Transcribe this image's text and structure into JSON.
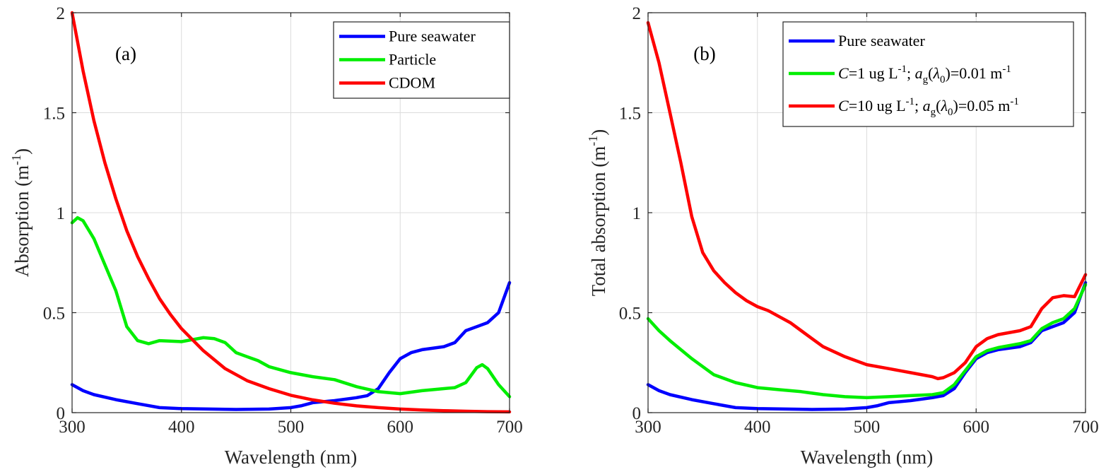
{
  "chart_data": [
    {
      "type": "line",
      "panel_label": "(a)",
      "xlabel": "Wavelength (nm)",
      "ylabel": "Absorption (m",
      "ylabel_sup": "-1",
      "ylabel_end": ")",
      "xlim": [
        300,
        700
      ],
      "ylim": [
        0,
        2
      ],
      "grid": true,
      "legend_position": "top-right",
      "xticks": [
        300,
        400,
        500,
        600,
        700
      ],
      "yticks": [
        0,
        0.5,
        1,
        1.5,
        2
      ],
      "ytick_labels": [
        "0",
        "0.5",
        "1",
        "1.5",
        "2"
      ],
      "series": [
        {
          "name": "Pure seawater",
          "legend": [
            {
              "t": "Pure seawater"
            }
          ],
          "color": "#0000ff",
          "x": [
            300,
            310,
            320,
            340,
            360,
            380,
            400,
            450,
            480,
            500,
            510,
            520,
            540,
            560,
            570,
            580,
            590,
            600,
            610,
            620,
            640,
            650,
            660,
            670,
            680,
            690,
            700
          ],
          "y": [
            0.14,
            0.11,
            0.09,
            0.065,
            0.045,
            0.025,
            0.02,
            0.016,
            0.018,
            0.025,
            0.035,
            0.05,
            0.06,
            0.075,
            0.085,
            0.12,
            0.2,
            0.27,
            0.3,
            0.315,
            0.33,
            0.35,
            0.41,
            0.43,
            0.45,
            0.5,
            0.65
          ]
        },
        {
          "name": "Particle",
          "legend": [
            {
              "t": "Particle"
            }
          ],
          "color": "#00ee00",
          "x": [
            300,
            305,
            310,
            320,
            330,
            340,
            350,
            360,
            370,
            380,
            400,
            410,
            420,
            430,
            440,
            450,
            460,
            470,
            480,
            500,
            520,
            540,
            560,
            580,
            600,
            620,
            640,
            650,
            660,
            670,
            675,
            680,
            690,
            700
          ],
          "y": [
            0.95,
            0.975,
            0.96,
            0.87,
            0.74,
            0.61,
            0.43,
            0.36,
            0.345,
            0.36,
            0.355,
            0.365,
            0.375,
            0.37,
            0.35,
            0.3,
            0.28,
            0.26,
            0.23,
            0.2,
            0.18,
            0.165,
            0.13,
            0.105,
            0.095,
            0.11,
            0.12,
            0.125,
            0.15,
            0.225,
            0.24,
            0.22,
            0.14,
            0.08
          ]
        },
        {
          "name": "CDOM",
          "legend": [
            {
              "t": "CDOM"
            }
          ],
          "color": "#ff0000",
          "x": [
            300,
            310,
            320,
            330,
            340,
            350,
            360,
            370,
            380,
            390,
            400,
            420,
            440,
            460,
            480,
            500,
            520,
            540,
            560,
            580,
            600,
            620,
            640,
            660,
            680,
            700
          ],
          "y": [
            2.0,
            1.71,
            1.46,
            1.25,
            1.07,
            0.91,
            0.78,
            0.67,
            0.57,
            0.49,
            0.42,
            0.31,
            0.22,
            0.16,
            0.12,
            0.087,
            0.064,
            0.047,
            0.034,
            0.025,
            0.018,
            0.013,
            0.01,
            0.007,
            0.005,
            0.004
          ]
        }
      ]
    },
    {
      "type": "line",
      "panel_label": "(b)",
      "xlabel": "Wavelength (nm)",
      "ylabel": "Total absorption (m",
      "ylabel_sup": "-1",
      "ylabel_end": ")",
      "xlim": [
        300,
        700
      ],
      "ylim": [
        0,
        2
      ],
      "grid": true,
      "legend_position": "top-right",
      "xticks": [
        300,
        400,
        500,
        600,
        700
      ],
      "yticks": [
        0,
        0.5,
        1,
        1.5,
        2
      ],
      "ytick_labels": [
        "0",
        "0.5",
        "1",
        "1.5",
        "2"
      ],
      "series": [
        {
          "name": "Pure seawater",
          "legend": [
            {
              "t": "Pure seawater"
            }
          ],
          "color": "#0000ff",
          "x": [
            300,
            310,
            320,
            340,
            360,
            380,
            400,
            450,
            480,
            500,
            510,
            520,
            540,
            560,
            570,
            580,
            590,
            600,
            610,
            620,
            640,
            650,
            660,
            670,
            680,
            690,
            700
          ],
          "y": [
            0.14,
            0.11,
            0.09,
            0.065,
            0.045,
            0.025,
            0.02,
            0.016,
            0.018,
            0.025,
            0.035,
            0.05,
            0.06,
            0.075,
            0.085,
            0.12,
            0.2,
            0.27,
            0.3,
            0.315,
            0.33,
            0.35,
            0.41,
            0.43,
            0.45,
            0.5,
            0.65
          ]
        },
        {
          "name": "C=1 ug L-1; ag(λ0)=0.01 m-1",
          "legend": [
            {
              "t": "C",
              "i": true
            },
            {
              "t": "=1 ug L"
            },
            {
              "t": "-1",
              "s": "sup"
            },
            {
              "t": "; "
            },
            {
              "t": "a",
              "i": true
            },
            {
              "t": "g",
              "s": "sub"
            },
            {
              "t": "("
            },
            {
              "t": "λ",
              "i": true
            },
            {
              "t": "0",
              "s": "sub"
            },
            {
              "t": ")=0.01 m"
            },
            {
              "t": "-1",
              "s": "sup"
            }
          ],
          "color": "#00ee00",
          "x": [
            300,
            310,
            320,
            340,
            360,
            380,
            400,
            420,
            440,
            460,
            480,
            500,
            520,
            540,
            560,
            570,
            580,
            590,
            600,
            610,
            620,
            640,
            650,
            660,
            670,
            680,
            690,
            700
          ],
          "y": [
            0.47,
            0.41,
            0.36,
            0.27,
            0.19,
            0.15,
            0.125,
            0.115,
            0.105,
            0.09,
            0.08,
            0.075,
            0.08,
            0.085,
            0.09,
            0.1,
            0.14,
            0.21,
            0.28,
            0.31,
            0.325,
            0.345,
            0.36,
            0.42,
            0.45,
            0.47,
            0.52,
            0.64
          ]
        },
        {
          "name": "C=10 ug L-1; ag(λ0)=0.05 m-1",
          "legend": [
            {
              "t": "C",
              "i": true
            },
            {
              "t": "=10 ug L"
            },
            {
              "t": "-1",
              "s": "sup"
            },
            {
              "t": "; "
            },
            {
              "t": "a",
              "i": true
            },
            {
              "t": "g",
              "s": "sub"
            },
            {
              "t": "("
            },
            {
              "t": "λ",
              "i": true
            },
            {
              "t": "0",
              "s": "sub"
            },
            {
              "t": ")=0.05 m"
            },
            {
              "t": "-1",
              "s": "sup"
            }
          ],
          "color": "#ff0000",
          "x": [
            300,
            310,
            320,
            330,
            340,
            350,
            360,
            370,
            380,
            390,
            400,
            410,
            420,
            430,
            440,
            450,
            460,
            480,
            500,
            520,
            540,
            560,
            565,
            570,
            580,
            590,
            600,
            610,
            620,
            640,
            650,
            660,
            670,
            680,
            690,
            700
          ],
          "y": [
            1.95,
            1.75,
            1.5,
            1.25,
            0.98,
            0.8,
            0.71,
            0.65,
            0.6,
            0.56,
            0.53,
            0.51,
            0.48,
            0.45,
            0.41,
            0.37,
            0.33,
            0.28,
            0.24,
            0.22,
            0.2,
            0.18,
            0.17,
            0.175,
            0.2,
            0.25,
            0.33,
            0.37,
            0.39,
            0.41,
            0.43,
            0.52,
            0.575,
            0.585,
            0.58,
            0.69
          ]
        }
      ]
    }
  ]
}
